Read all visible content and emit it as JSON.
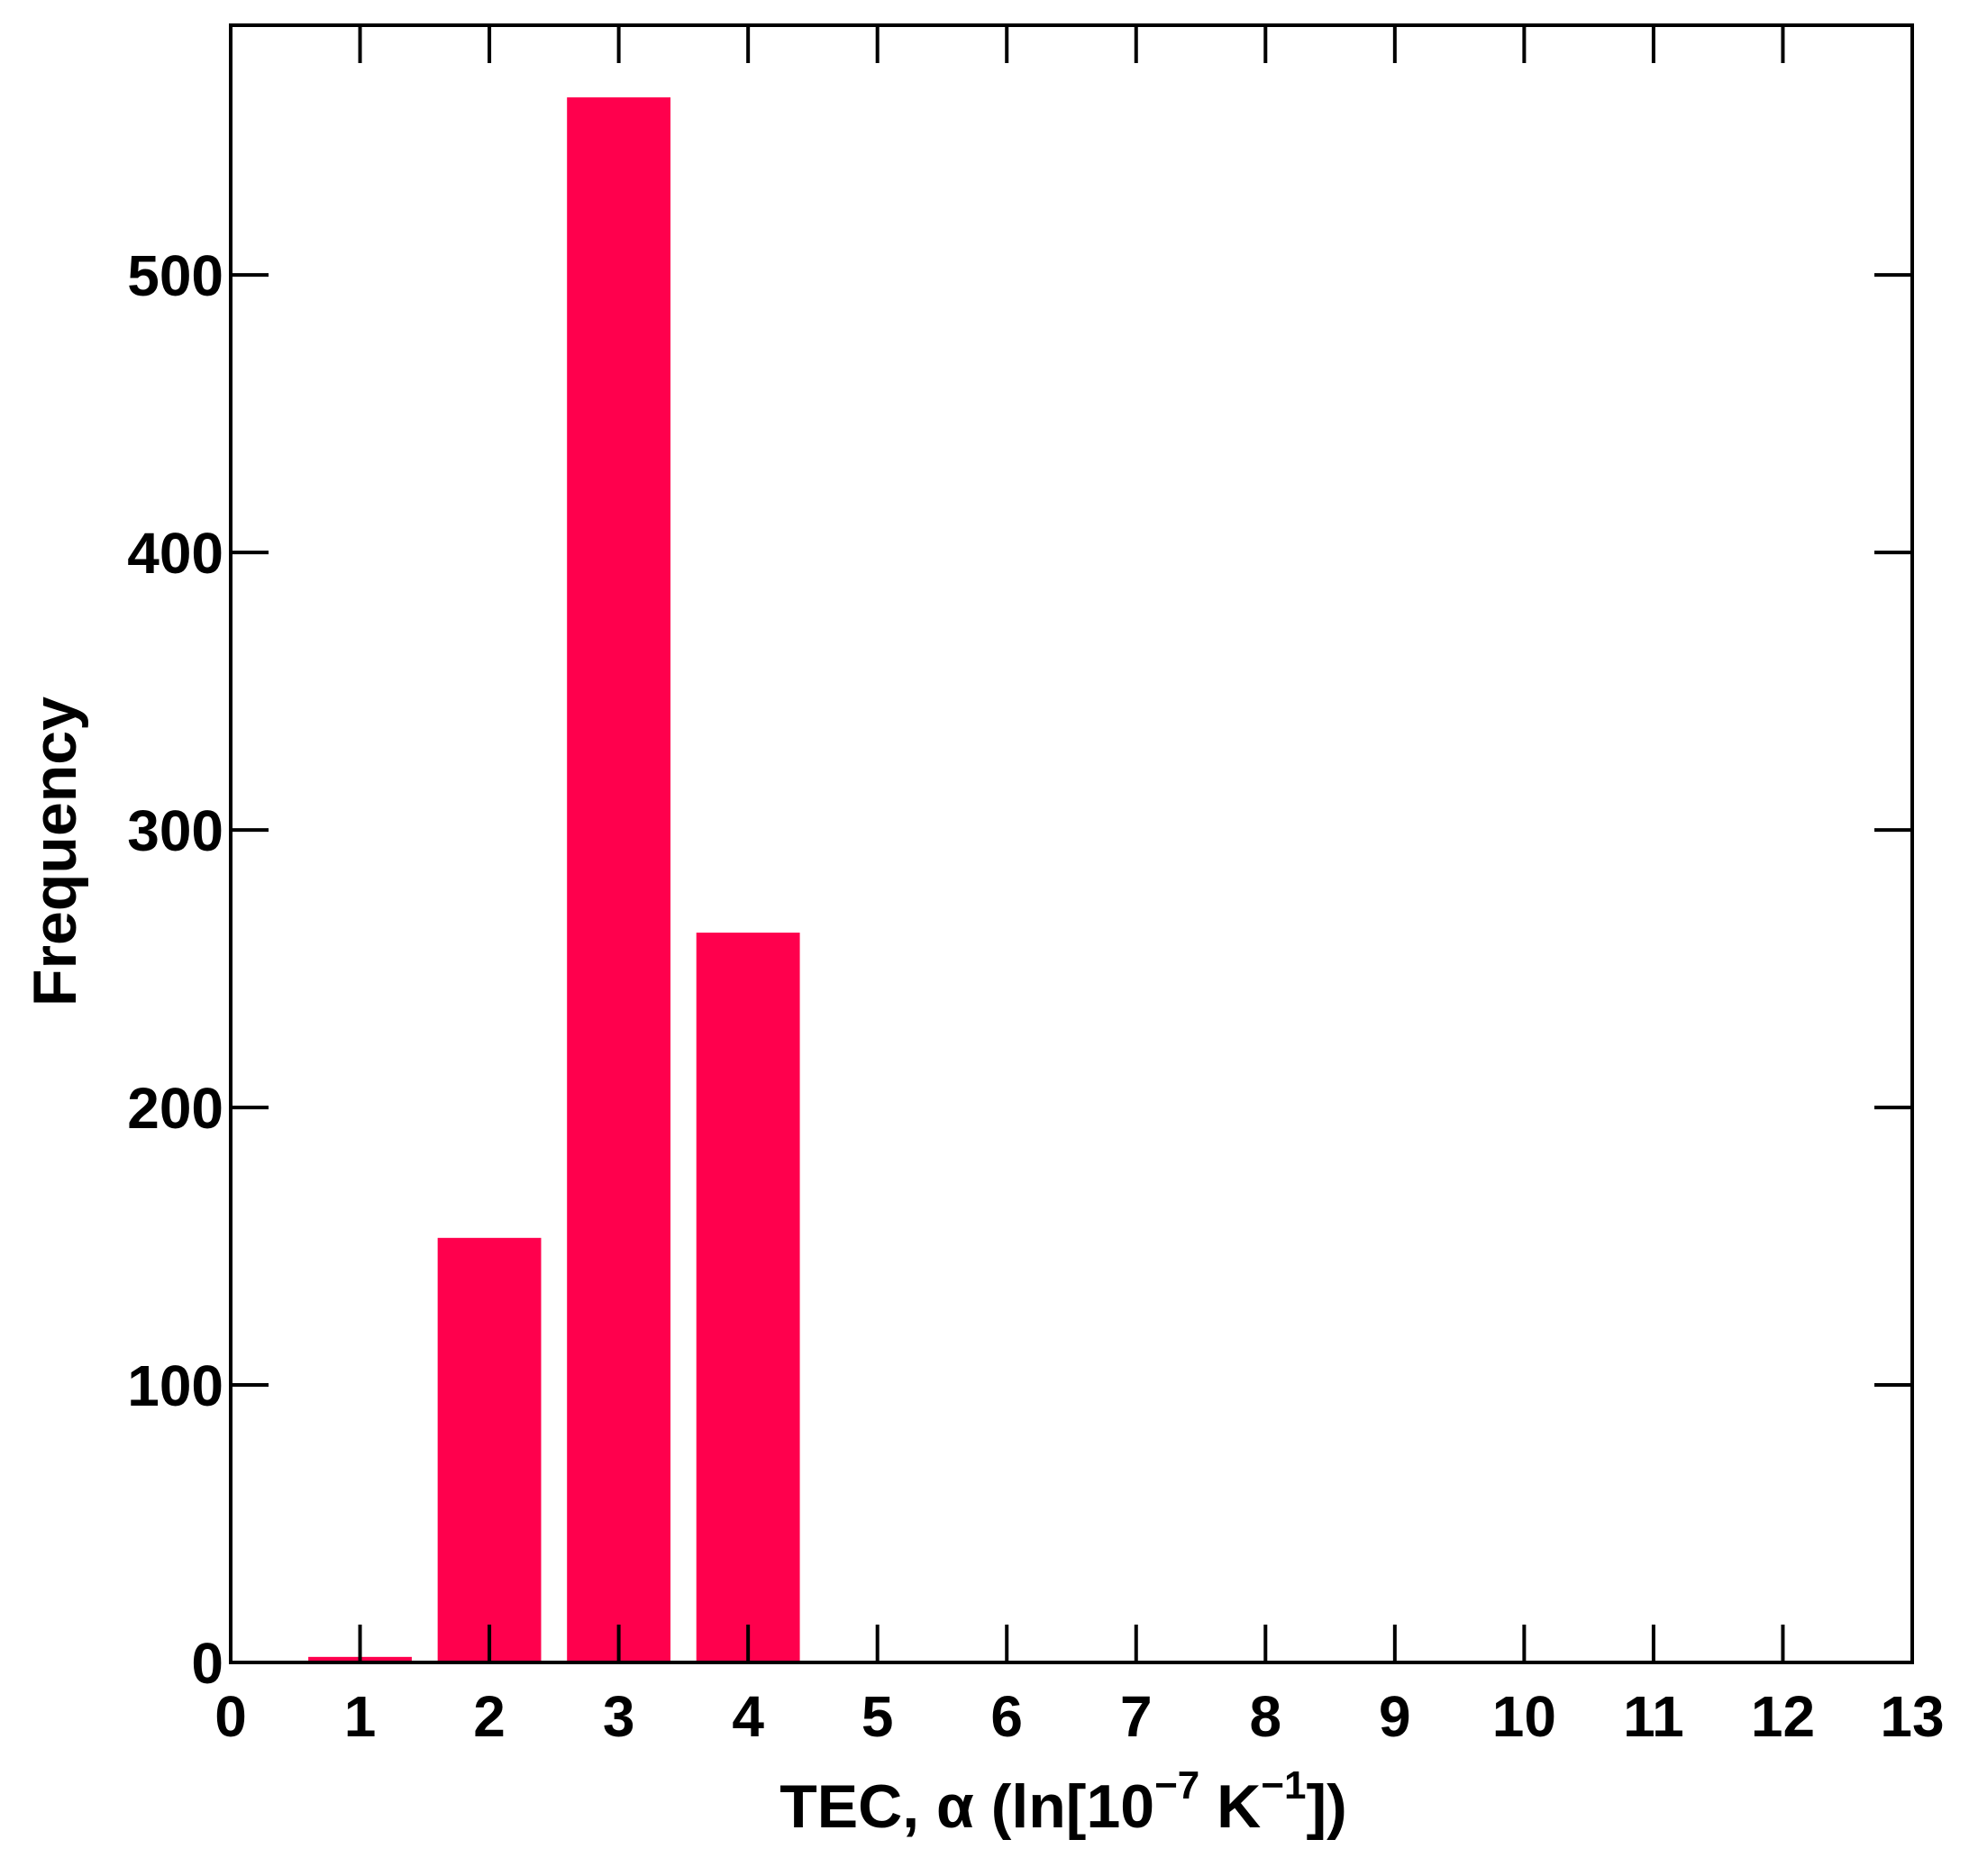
{
  "chart_data": {
    "type": "bar",
    "x": [
      1,
      2,
      3,
      4
    ],
    "values": [
      2,
      153,
      564,
      263
    ],
    "xlabel": {
      "main": "TEC, α  (ln[10",
      "sup1": "−7",
      "mid": " K",
      "sup2": "−1",
      "end": "])"
    },
    "ylabel": "Frequency",
    "xlim": [
      0,
      13
    ],
    "ylim": [
      0,
      590
    ],
    "xticks": [
      0,
      1,
      2,
      3,
      4,
      5,
      6,
      7,
      8,
      9,
      10,
      11,
      12,
      13
    ],
    "yticks": [
      0,
      100,
      200,
      300,
      400,
      500
    ],
    "bar_width": 0.8,
    "bar_color": "#ff004d",
    "grid": false,
    "legend": "none"
  }
}
